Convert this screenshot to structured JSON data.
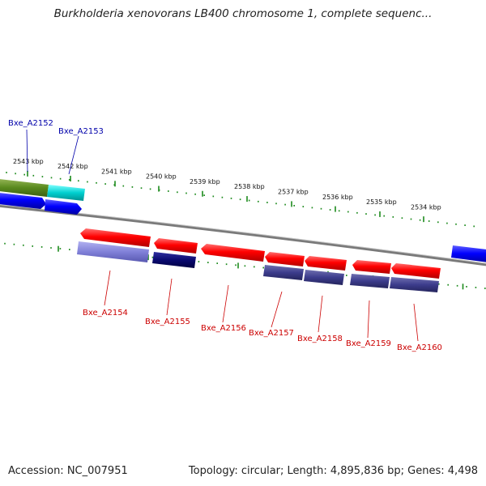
{
  "title": "Burkholderia xenovorans LB400 chromosome 1, complete sequenc...",
  "footer": {
    "accession": "Accession: NC_007951",
    "topology": "Topology: circular; Length: 4,895,836 bp; Genes: 4,498"
  },
  "colors": {
    "backbone": "#808080",
    "tick": "#1c8a1c",
    "forward_gene": "#ff0000",
    "forward_label": "#cc0000",
    "reverse_label": "#0000aa",
    "feature_blue": "#0000ff",
    "feature_cyan": "#00cccc",
    "feature_olive": "#5a8a1e",
    "feature_navy": "#0a0a70",
    "feature_slate": "#3c3c8c",
    "feature_lavender": "#8080d8"
  },
  "kbp_labels": [
    "2543 kbp",
    "2542 kbp",
    "2541 kbp",
    "2540 kbp",
    "2539 kbp",
    "2538 kbp",
    "2537 kbp",
    "2536 kbp",
    "2535 kbp",
    "2534 kbp"
  ],
  "genes_top": [
    {
      "name": "Bxe_A2152"
    },
    {
      "name": "Bxe_A2153"
    }
  ],
  "genes_bottom": [
    {
      "name": "Bxe_A2154"
    },
    {
      "name": "Bxe_A2155"
    },
    {
      "name": "Bxe_A2156"
    },
    {
      "name": "Bxe_A2157"
    },
    {
      "name": "Bxe_A2158"
    },
    {
      "name": "Bxe_A2159"
    },
    {
      "name": "Bxe_A2160"
    }
  ]
}
